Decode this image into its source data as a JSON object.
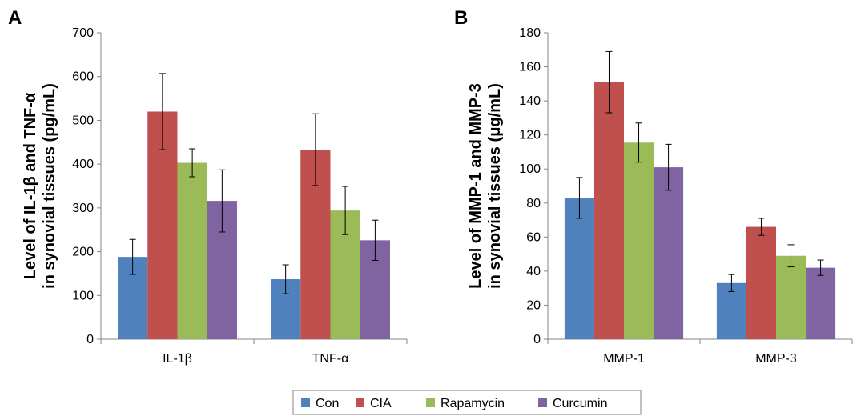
{
  "chart_data": [
    {
      "type": "bar",
      "panel_label": "A",
      "ylabel_lines": [
        "Level of IL-1β and TNF-α",
        "in synovial tissues  (pg/mL)"
      ],
      "xlabel": "",
      "ylim": [
        0,
        700
      ],
      "yticks": [
        0,
        100,
        200,
        300,
        400,
        500,
        600,
        700
      ],
      "categories": [
        "IL-1β",
        "TNF-α"
      ],
      "grid": false,
      "series": [
        {
          "name": "Con",
          "values": [
            188,
            137
          ],
          "errors": [
            40,
            33
          ]
        },
        {
          "name": "CIA",
          "values": [
            520,
            433
          ],
          "errors": [
            87,
            82
          ]
        },
        {
          "name": "Rapamycin",
          "values": [
            403,
            294
          ],
          "errors": [
            32,
            55
          ]
        },
        {
          "name": "Curcumin",
          "values": [
            316,
            226
          ],
          "errors": [
            71,
            46
          ]
        }
      ]
    },
    {
      "type": "bar",
      "panel_label": "B",
      "ylabel_lines": [
        "Level of MMP-1 and MMP-3",
        "in synovial tissues  (μg/mL)"
      ],
      "xlabel": "",
      "ylim": [
        0,
        180
      ],
      "yticks": [
        0,
        20,
        40,
        60,
        80,
        100,
        120,
        140,
        160,
        180
      ],
      "categories": [
        "MMP-1",
        "MMP-3"
      ],
      "grid": false,
      "series": [
        {
          "name": "Con",
          "values": [
            83,
            33
          ],
          "errors": [
            12,
            5
          ]
        },
        {
          "name": "CIA",
          "values": [
            151,
            66
          ],
          "errors": [
            18,
            5
          ]
        },
        {
          "name": "Rapamycin",
          "values": [
            115.5,
            49
          ],
          "errors": [
            11.5,
            6.5
          ]
        },
        {
          "name": "Curcumin",
          "values": [
            101,
            42
          ],
          "errors": [
            13.5,
            4.5
          ]
        }
      ]
    }
  ],
  "legend": {
    "placement": "bottom-center",
    "items": [
      {
        "name": "Con",
        "color": "#4f81bd"
      },
      {
        "name": "CIA",
        "color": "#c0504d"
      },
      {
        "name": "Rapamycin",
        "color": "#9bbb59"
      },
      {
        "name": "Curcumin",
        "color": "#8064a2"
      }
    ]
  },
  "colors": {
    "Con": "#4f81bd",
    "CIA": "#c0504d",
    "Rapamycin": "#9bbb59",
    "Curcumin": "#8064a2"
  }
}
